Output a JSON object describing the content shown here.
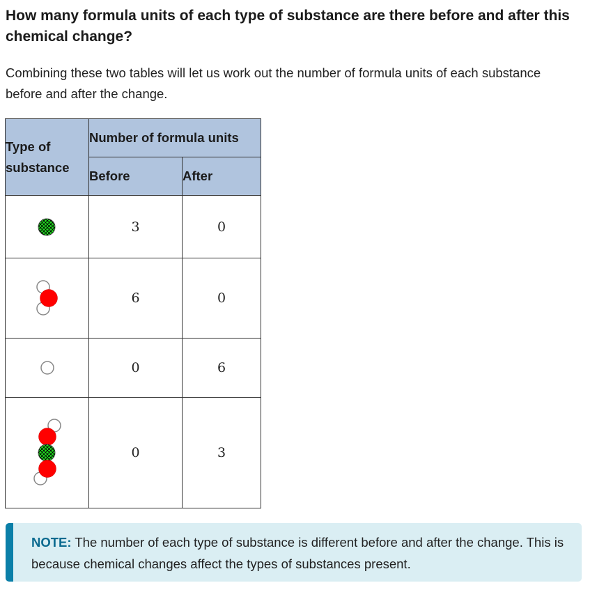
{
  "question": "How many formula units of each type of substance are there before and after this chemical change?",
  "intro": "Combining these two tables will let us work out the number of formula units of each substance before and after the change.",
  "table": {
    "type_header": "Type of substance",
    "group_header": "Number of formula units",
    "before_header": "Before",
    "after_header": "After",
    "rows": [
      {
        "icon": "green-atom-molecule-icon",
        "before": "3",
        "after": "0"
      },
      {
        "icon": "red-two-white-molecule-icon",
        "before": "6",
        "after": "0"
      },
      {
        "icon": "white-atom-icon",
        "before": "0",
        "after": "6"
      },
      {
        "icon": "chain-molecule-icon",
        "before": "0",
        "after": "3"
      }
    ]
  },
  "note": {
    "label": "NOTE:",
    "text": " The number of each type of substance is different before and after the change. This is because chemical changes affect the types of substances present."
  },
  "colors": {
    "header_bg": "#b0c4de",
    "note_bg": "#daeef3",
    "note_accent": "#0b7fa8",
    "green_atom": "#22dd22",
    "red_atom": "#ff0000",
    "white_atom": "#ffffff"
  }
}
